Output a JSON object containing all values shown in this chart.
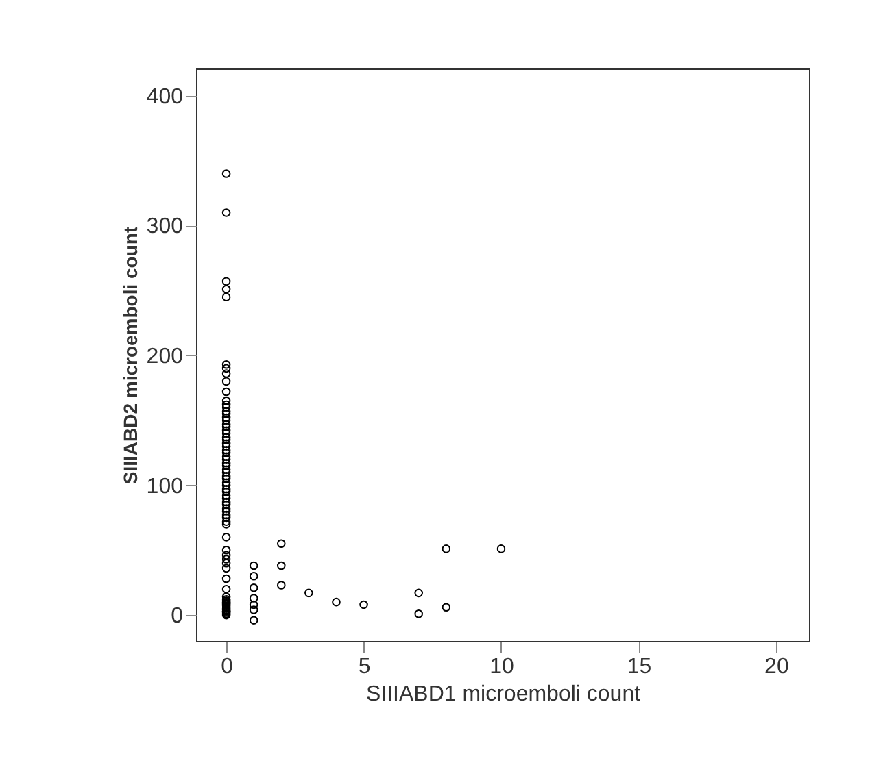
{
  "chart_data": {
    "type": "scatter",
    "xlabel": "SIIIABD1 microemboli count",
    "ylabel": "SIIIABD2 microemboli count",
    "marker": "circle",
    "grid": false,
    "legend": false,
    "xlim": [
      -1.1,
      21.2
    ],
    "ylim": [
      -20,
      421
    ],
    "xticks": [
      0,
      5,
      10,
      15,
      20
    ],
    "yticks": [
      0,
      100,
      200,
      300,
      400
    ],
    "series": [
      {
        "color": "#000000",
        "x": [
          0,
          0,
          0,
          0,
          0,
          0,
          0,
          0,
          0,
          0,
          0,
          0,
          0,
          0,
          0,
          0,
          0,
          0,
          0,
          0,
          0,
          0,
          0,
          0,
          0,
          0,
          0,
          0,
          0,
          0,
          0,
          0,
          0,
          0,
          0,
          0,
          0,
          0,
          0,
          0,
          0,
          0,
          0,
          0,
          0,
          0,
          0,
          0,
          0,
          0,
          0,
          0,
          0,
          0,
          0,
          0,
          0,
          0,
          0,
          0,
          0,
          0,
          0,
          0,
          0,
          0,
          0,
          0,
          0,
          0,
          0,
          0,
          1,
          1,
          1,
          1,
          1,
          1,
          1,
          2,
          2,
          2,
          3,
          4,
          5,
          7,
          7,
          8,
          8,
          10
        ],
        "values": [
          340,
          310,
          257,
          251,
          245,
          193,
          190,
          186,
          180,
          172,
          165,
          162,
          160,
          157,
          155,
          152,
          150,
          147,
          145,
          142,
          140,
          137,
          135,
          132,
          130,
          127,
          125,
          122,
          120,
          117,
          115,
          112,
          110,
          107,
          105,
          102,
          100,
          97,
          95,
          92,
          90,
          87,
          85,
          82,
          80,
          77,
          75,
          72,
          70,
          60,
          50,
          46,
          43,
          40,
          36,
          28,
          20,
          12,
          10,
          9,
          8,
          7,
          6,
          5,
          4,
          3,
          2,
          1,
          0,
          14,
          11,
          3,
          38,
          30,
          21,
          13,
          8,
          4,
          -4,
          55,
          38,
          23,
          17,
          10,
          8,
          17,
          1,
          51,
          6,
          51
        ]
      }
    ]
  }
}
